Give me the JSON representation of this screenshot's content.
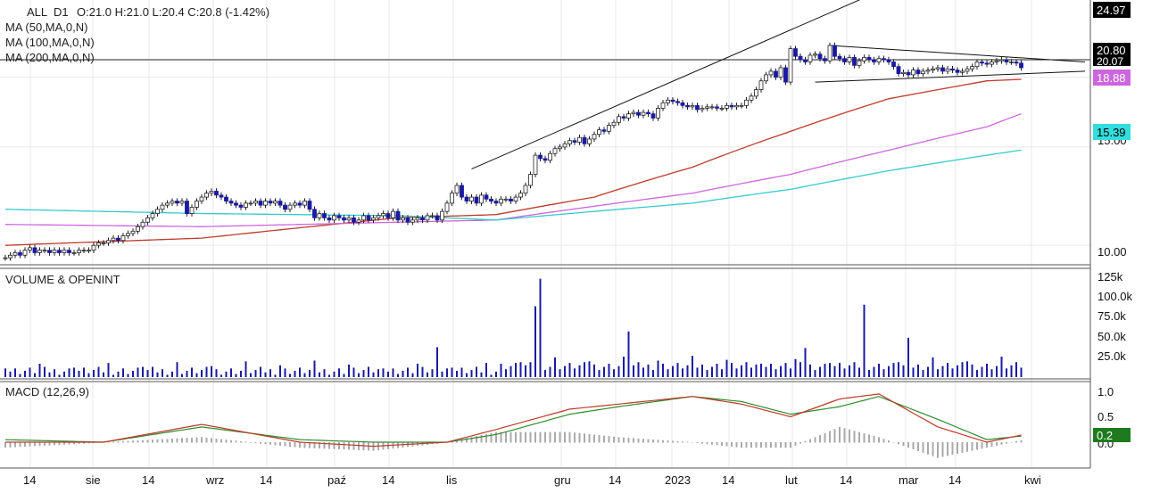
{
  "header": {
    "symbol": "ALL",
    "timeframe": "D1",
    "ohlc_text": "O:21.0  H:21.0  L:20.4  C:20.8  (-1.42%)"
  },
  "legend": {
    "ma50": "MA (50,MA,0,N)",
    "ma100": "MA (100,MA,0,N)",
    "ma200": "MA (200,MA,0,N)",
    "volume": "VOLUME & OPENINT",
    "macd": "MACD (12,26,9)"
  },
  "colors": {
    "up_candle": "#ffffff",
    "down_candle": "#1a1aa0",
    "ma50": "#c0392b",
    "ma100": "#cc66dd",
    "ma200": "#33cccc",
    "volume": "#1a1aa0",
    "macd": "#c0392b",
    "signal": "#2e8b2e",
    "histogram": "#aaaaaa"
  },
  "price_axis": {
    "ticks": [
      "10.00",
      "15.00",
      "20.07"
    ],
    "badges": [
      {
        "text": "24.97",
        "bg": "#000000",
        "fg": "#ffffff"
      },
      {
        "text": "20.80",
        "bg": "#000000",
        "fg": "#ffffff"
      },
      {
        "text": "18.88",
        "bg": "#cc66dd",
        "fg": "#ffffff"
      },
      {
        "text": "15.39",
        "bg": "#33dddd",
        "fg": "#000000"
      }
    ]
  },
  "volume_axis": {
    "ticks": [
      "125k",
      "100.0k",
      "75.0k",
      "50.0k",
      "25.0k"
    ]
  },
  "macd_axis": {
    "ticks": [
      "1.0",
      "0.5",
      "0.0"
    ],
    "badge": "0.2"
  },
  "x_axis": {
    "labels": [
      "14",
      "sie",
      "14",
      "wrz",
      "14",
      "paź",
      "14",
      "lis",
      "gru",
      "14",
      "2023",
      "14",
      "lut",
      "14",
      "mar",
      "14",
      "kwi"
    ]
  },
  "chart_data": {
    "type": "candlestick",
    "price_scale": "log",
    "price_range": [
      9.4,
      27.0
    ],
    "closes": [
      9.5,
      9.6,
      9.7,
      9.6,
      9.8,
      9.9,
      9.7,
      9.8,
      9.8,
      9.7,
      9.8,
      9.7,
      9.8,
      9.7,
      9.7,
      9.8,
      9.8,
      9.8,
      10.0,
      10.1,
      10.1,
      10.2,
      10.3,
      10.2,
      10.4,
      10.5,
      10.6,
      10.8,
      11.0,
      11.2,
      11.4,
      11.6,
      11.8,
      11.9,
      12.0,
      11.9,
      12.0,
      11.4,
      11.7,
      12.0,
      12.2,
      12.4,
      12.5,
      12.3,
      12.2,
      12.0,
      11.9,
      11.8,
      11.7,
      11.9,
      11.9,
      12.0,
      11.8,
      12.0,
      11.9,
      12.0,
      11.8,
      11.6,
      11.8,
      11.9,
      11.8,
      12.0,
      11.6,
      11.2,
      11.4,
      11.2,
      11.1,
      11.3,
      11.2,
      11.1,
      11.2,
      11.0,
      11.1,
      11.3,
      11.1,
      11.2,
      11.3,
      11.4,
      11.2,
      11.5,
      11.1,
      11.2,
      11.0,
      11.1,
      11.2,
      11.1,
      11.3,
      11.3,
      11.1,
      11.5,
      11.9,
      12.4,
      12.8,
      12.2,
      12.0,
      12.2,
      11.9,
      12.3,
      12.1,
      12.0,
      11.9,
      12.1,
      12.1,
      12.0,
      12.2,
      12.4,
      12.8,
      13.4,
      14.5,
      14.3,
      14.2,
      14.6,
      14.9,
      15.0,
      15.2,
      15.4,
      15.3,
      15.6,
      15.2,
      15.5,
      15.8,
      16.1,
      16.0,
      16.4,
      16.6,
      17.0,
      16.9,
      17.2,
      17.3,
      17.1,
      17.3,
      17.2,
      16.9,
      17.6,
      18.0,
      18.2,
      18.1,
      18.0,
      17.8,
      17.7,
      17.8,
      17.5,
      17.6,
      17.7,
      17.7,
      17.6,
      17.6,
      17.8,
      17.7,
      17.8,
      17.8,
      18.2,
      18.5,
      19.0,
      19.7,
      20.2,
      20.5,
      20.0,
      20.8,
      19.6,
      22.5,
      21.8,
      21.5,
      21.3,
      21.9,
      22.0,
      21.6,
      21.4,
      22.8,
      21.8,
      21.6,
      21.3,
      21.7,
      21.0,
      21.4,
      21.7,
      21.5,
      21.3,
      21.6,
      21.5,
      21.3,
      20.9,
      20.3,
      20.4,
      20.2,
      20.6,
      20.3,
      20.5,
      20.6,
      20.7,
      20.8,
      20.5,
      20.7,
      20.6,
      20.4,
      20.5,
      20.7,
      20.9,
      21.3,
      21.2,
      21.1,
      21.3,
      21.4,
      21.5,
      21.3,
      21.3,
      21.2,
      20.8
    ],
    "series": [
      {
        "name": "MA (50,MA,0,N)",
        "anchors": [
          [
            0,
            10.0
          ],
          [
            40,
            10.3
          ],
          [
            80,
            11.2
          ],
          [
            100,
            11.35
          ],
          [
            120,
            12.2
          ],
          [
            140,
            13.8
          ],
          [
            160,
            16.0
          ],
          [
            180,
            18.3
          ],
          [
            200,
            19.7
          ],
          [
            220,
            20.07
          ]
        ]
      },
      {
        "name": "MA (100,MA,0,N)",
        "anchors": [
          [
            0,
            10.9
          ],
          [
            40,
            10.8
          ],
          [
            80,
            11.0
          ],
          [
            100,
            11.1
          ],
          [
            140,
            12.4
          ],
          [
            160,
            13.4
          ],
          [
            180,
            14.8
          ],
          [
            200,
            16.3
          ],
          [
            220,
            18.88
          ]
        ]
      },
      {
        "name": "MA (200,MA,0,N)",
        "anchors": [
          [
            0,
            11.6
          ],
          [
            40,
            11.4
          ],
          [
            80,
            11.3
          ],
          [
            100,
            11.1
          ],
          [
            140,
            11.9
          ],
          [
            160,
            12.6
          ],
          [
            180,
            13.6
          ],
          [
            200,
            14.5
          ],
          [
            220,
            15.39
          ]
        ]
      }
    ],
    "volume_spikes": {
      "108": 90,
      "109": 125,
      "88": 38,
      "127": 58,
      "175": 92,
      "163": 37,
      "184": 50
    },
    "macd_anchors": [
      [
        0,
        0.0
      ],
      [
        20,
        0.0
      ],
      [
        40,
        0.35
      ],
      [
        60,
        0.0
      ],
      [
        75,
        -0.08
      ],
      [
        90,
        0.0
      ],
      [
        100,
        0.25
      ],
      [
        115,
        0.65
      ],
      [
        125,
        0.75
      ],
      [
        140,
        0.9
      ],
      [
        150,
        0.75
      ],
      [
        160,
        0.5
      ],
      [
        170,
        0.85
      ],
      [
        178,
        0.95
      ],
      [
        190,
        0.3
      ],
      [
        200,
        0.0
      ],
      [
        210,
        0.2
      ],
      [
        220,
        0.2
      ]
    ],
    "signal_anchors": [
      [
        0,
        0.05
      ],
      [
        20,
        0.0
      ],
      [
        40,
        0.3
      ],
      [
        60,
        0.05
      ],
      [
        75,
        0.0
      ],
      [
        90,
        0.0
      ],
      [
        100,
        0.15
      ],
      [
        115,
        0.55
      ],
      [
        125,
        0.7
      ],
      [
        140,
        0.9
      ],
      [
        150,
        0.8
      ],
      [
        160,
        0.55
      ],
      [
        170,
        0.7
      ],
      [
        178,
        0.9
      ],
      [
        190,
        0.45
      ],
      [
        200,
        0.05
      ],
      [
        210,
        0.15
      ],
      [
        220,
        0.2
      ]
    ],
    "trendlines": [
      {
        "name": "channel-upper",
        "from": [
          95,
          13.7
        ],
        "to": [
          180,
          29.0
        ]
      },
      {
        "name": "triangle-upper",
        "from": [
          168,
          22.8
        ],
        "to": [
          220,
          21.3
        ]
      },
      {
        "name": "triangle-lower",
        "from": [
          165,
          19.6
        ],
        "to": [
          220,
          20.5
        ]
      }
    ]
  }
}
